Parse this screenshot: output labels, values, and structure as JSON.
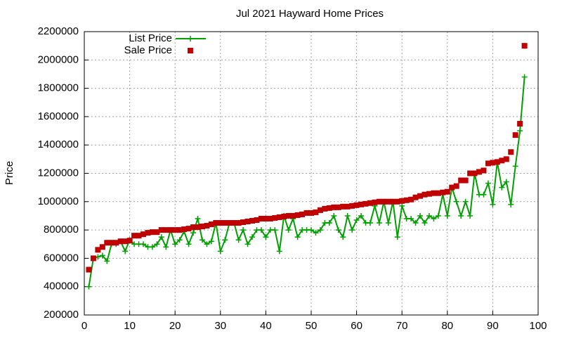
{
  "chart_data": {
    "type": "line",
    "title": "Jul 2021 Hayward Home Prices",
    "y_label": "Price",
    "x": [
      1,
      2,
      3,
      4,
      5,
      6,
      7,
      8,
      9,
      10,
      11,
      12,
      13,
      14,
      15,
      16,
      17,
      18,
      19,
      20,
      21,
      22,
      23,
      24,
      25,
      26,
      27,
      28,
      29,
      30,
      31,
      32,
      33,
      34,
      35,
      36,
      37,
      38,
      39,
      40,
      41,
      42,
      43,
      44,
      45,
      46,
      47,
      48,
      49,
      50,
      51,
      52,
      53,
      54,
      55,
      56,
      57,
      58,
      59,
      60,
      61,
      62,
      63,
      64,
      65,
      66,
      67,
      68,
      69,
      70,
      71,
      72,
      73,
      74,
      75,
      76,
      77,
      78,
      79,
      80,
      81,
      82,
      83,
      84,
      85,
      86,
      87,
      88,
      89,
      90,
      91,
      92,
      93,
      94,
      95,
      96,
      97
    ],
    "series": [
      {
        "name": "List Price",
        "color": "#00a000",
        "style": "linespoints",
        "values": [
          400000,
          600000,
          610000,
          620000,
          580000,
          700000,
          700000,
          720000,
          650000,
          730000,
          700000,
          700000,
          700000,
          680000,
          680000,
          700000,
          750000,
          680000,
          800000,
          700000,
          730000,
          790000,
          700000,
          780000,
          880000,
          730000,
          700000,
          720000,
          850000,
          650000,
          730000,
          850000,
          850000,
          730000,
          800000,
          700000,
          750000,
          800000,
          800000,
          750000,
          800000,
          800000,
          650000,
          900000,
          800000,
          880000,
          750000,
          800000,
          800000,
          800000,
          780000,
          800000,
          850000,
          850000,
          900000,
          800000,
          750000,
          900000,
          800000,
          870000,
          900000,
          850000,
          850000,
          970000,
          850000,
          1000000,
          850000,
          1000000,
          750000,
          970000,
          880000,
          880000,
          850000,
          900000,
          850000,
          900000,
          880000,
          900000,
          1050000,
          900000,
          1100000,
          1000000,
          900000,
          1000000,
          900000,
          1200000,
          1050000,
          1050000,
          1130000,
          980000,
          1280000,
          1100000,
          1140000,
          980000,
          1250000,
          1500000,
          1880000
        ]
      },
      {
        "name": "Sale Price",
        "color": "#c00000",
        "style": "points",
        "values": [
          520000,
          600000,
          660000,
          680000,
          710000,
          710000,
          710000,
          720000,
          720000,
          725000,
          760000,
          760000,
          770000,
          780000,
          785000,
          785000,
          800000,
          800000,
          800000,
          800000,
          800000,
          805000,
          810000,
          820000,
          820000,
          825000,
          830000,
          840000,
          850000,
          850000,
          850000,
          850000,
          850000,
          850000,
          855000,
          860000,
          865000,
          870000,
          880000,
          880000,
          880000,
          885000,
          890000,
          895000,
          900000,
          900000,
          905000,
          910000,
          920000,
          920000,
          925000,
          940000,
          950000,
          955000,
          960000,
          960000,
          965000,
          965000,
          970000,
          975000,
          980000,
          985000,
          990000,
          995000,
          1000000,
          1000000,
          1000000,
          1000000,
          1000000,
          1005000,
          1010000,
          1015000,
          1030000,
          1040000,
          1050000,
          1055000,
          1060000,
          1060000,
          1065000,
          1070000,
          1100000,
          1110000,
          1150000,
          1150000,
          1200000,
          1200000,
          1210000,
          1220000,
          1270000,
          1275000,
          1280000,
          1290000,
          1300000,
          1350000,
          1470000,
          1550000,
          2100000
        ]
      }
    ],
    "xlim": [
      0,
      100
    ],
    "xticks": [
      0,
      10,
      20,
      30,
      40,
      50,
      60,
      70,
      80,
      90,
      100
    ],
    "ylim": [
      200000,
      2200000
    ],
    "yticks": [
      200000,
      400000,
      600000,
      800000,
      1000000,
      1200000,
      1400000,
      1600000,
      1800000,
      2000000,
      2200000
    ],
    "grid": true,
    "legend": "top-left"
  }
}
